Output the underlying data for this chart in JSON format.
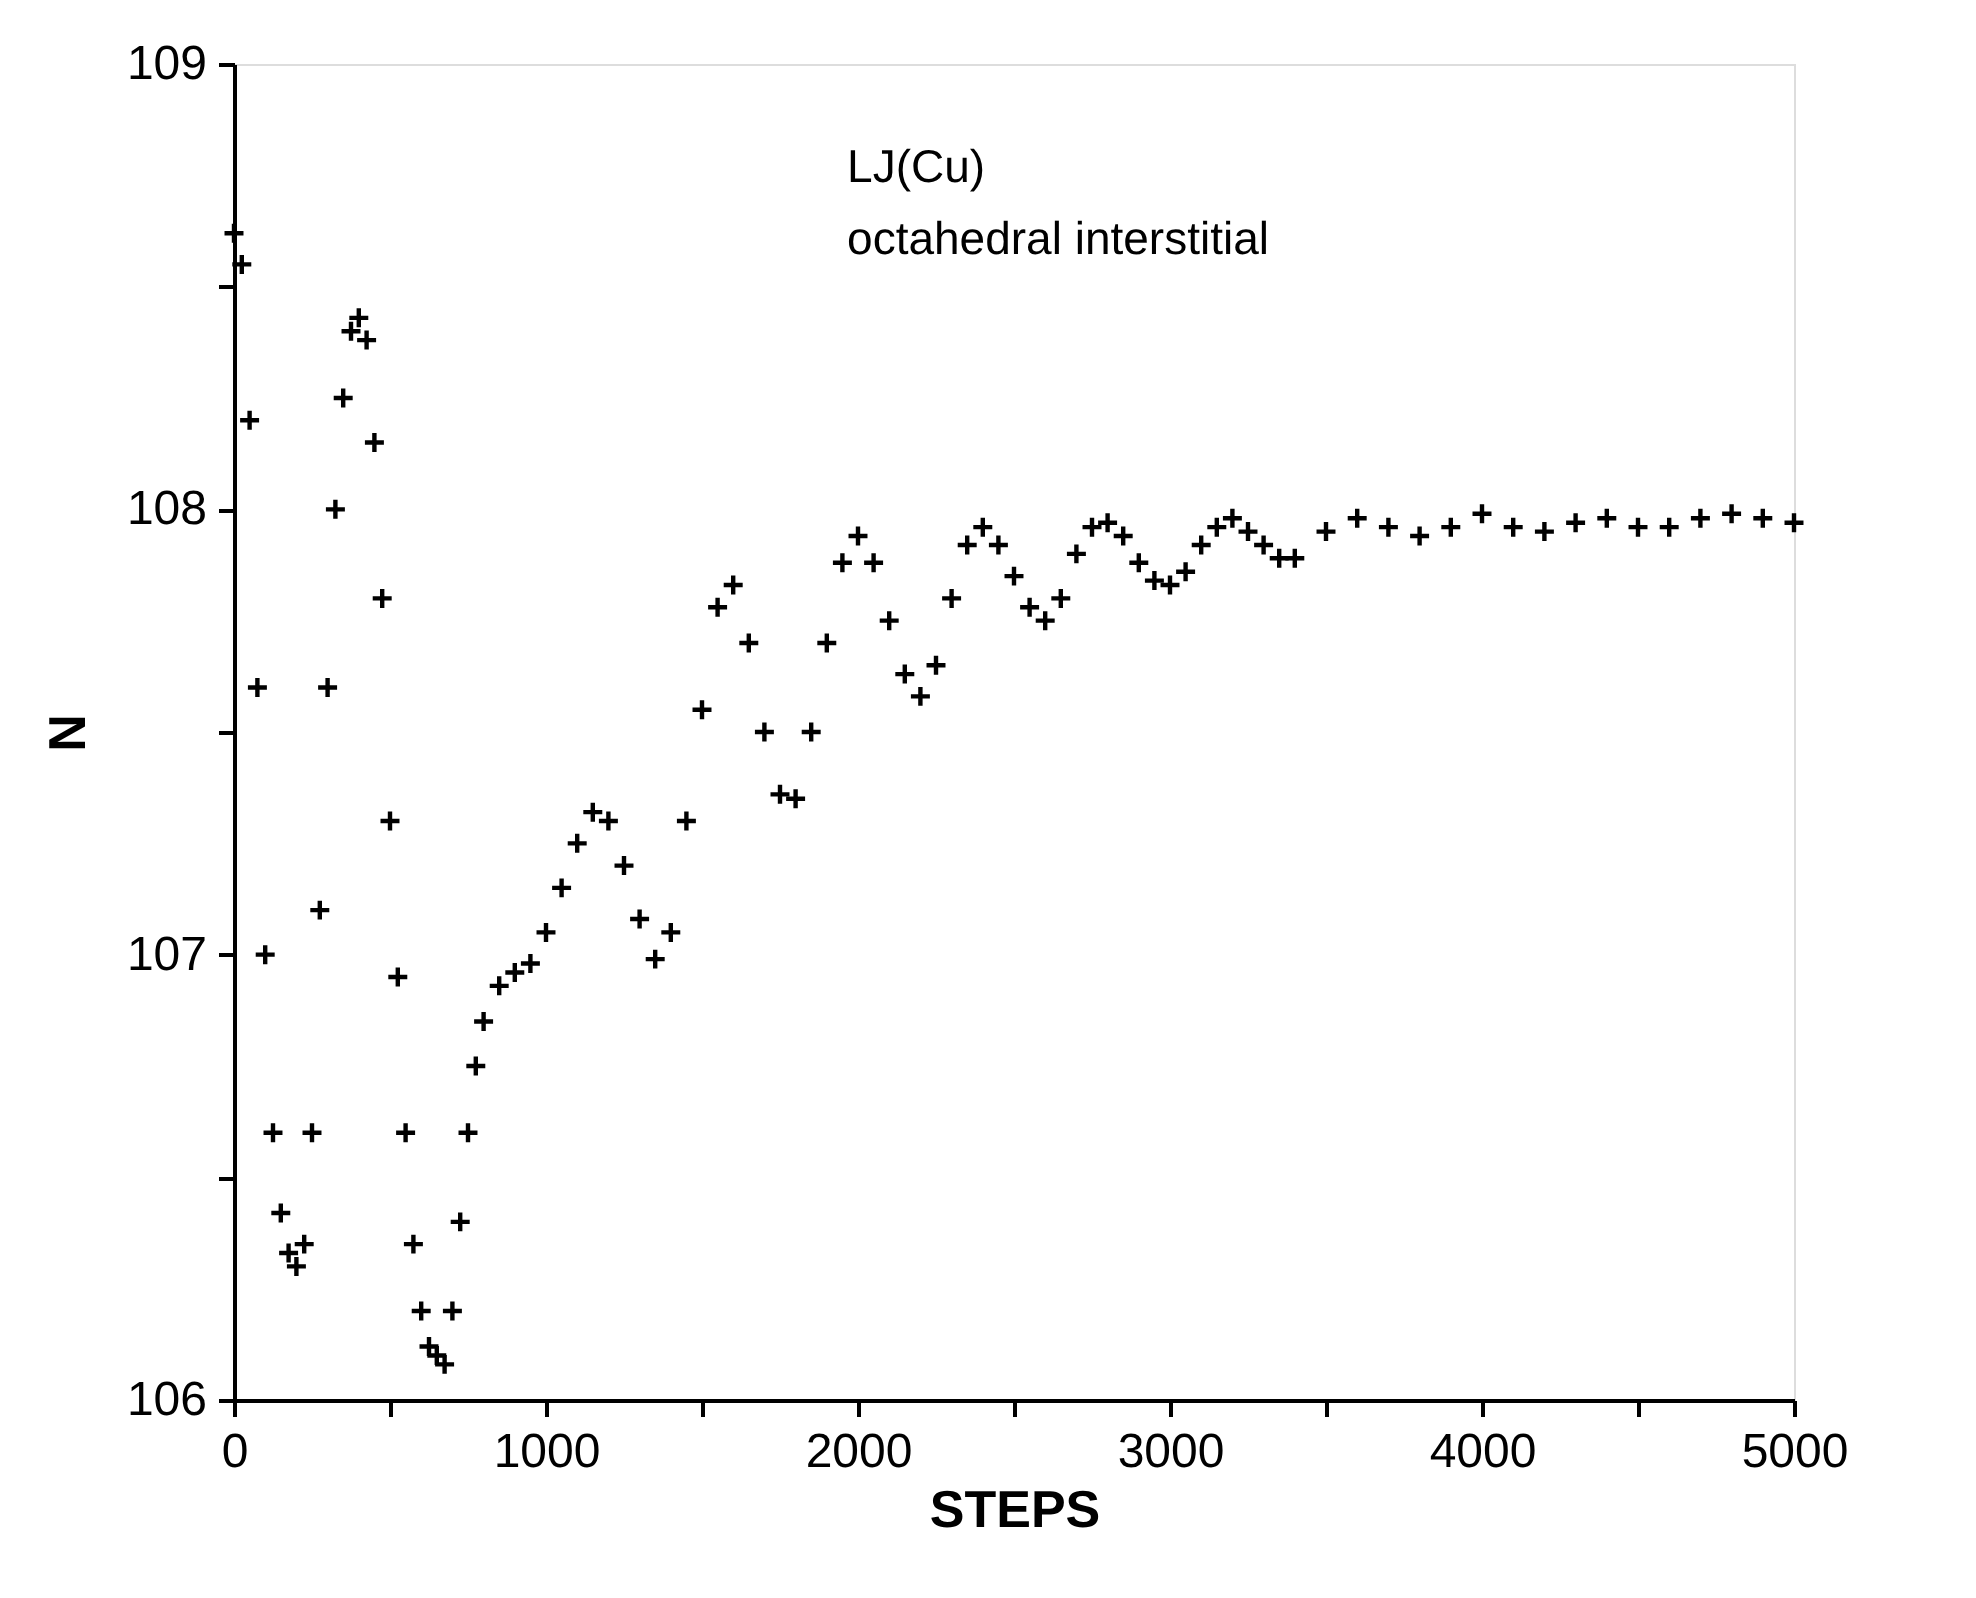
{
  "chart_data": {
    "type": "scatter",
    "xlabel": "STEPS",
    "ylabel": "N",
    "annotations": [
      "LJ(Cu)",
      "octahedral   interstitial"
    ],
    "x": [
      0,
      25,
      50,
      75,
      100,
      125,
      150,
      175,
      200,
      225,
      250,
      275,
      300,
      325,
      350,
      375,
      400,
      425,
      450,
      475,
      500,
      525,
      550,
      575,
      600,
      625,
      650,
      675,
      700,
      725,
      750,
      775,
      800,
      850,
      900,
      950,
      1000,
      1050,
      1100,
      1150,
      1200,
      1250,
      1300,
      1350,
      1400,
      1450,
      1500,
      1550,
      1600,
      1650,
      1700,
      1750,
      1800,
      1850,
      1900,
      1950,
      2000,
      2050,
      2100,
      2150,
      2200,
      2250,
      2300,
      2350,
      2400,
      2450,
      2500,
      2550,
      2600,
      2650,
      2700,
      2750,
      2800,
      2850,
      2900,
      2950,
      3000,
      3050,
      3100,
      3150,
      3200,
      3250,
      3300,
      3350,
      3400,
      3500,
      3600,
      3700,
      3800,
      3900,
      4000,
      4100,
      4200,
      4300,
      4400,
      4500,
      4600,
      4700,
      4800,
      4900,
      5000
    ],
    "values": [
      108.62,
      108.55,
      108.2,
      107.6,
      107.0,
      106.6,
      106.42,
      106.33,
      106.3,
      106.35,
      106.6,
      107.1,
      107.6,
      108.0,
      108.25,
      108.4,
      108.43,
      108.38,
      108.15,
      107.8,
      107.3,
      106.95,
      106.6,
      106.35,
      106.2,
      106.12,
      106.1,
      106.08,
      106.2,
      106.4,
      106.6,
      106.75,
      106.85,
      106.93,
      106.96,
      106.98,
      107.05,
      107.15,
      107.25,
      107.32,
      107.3,
      107.2,
      107.08,
      106.99,
      107.05,
      107.3,
      107.55,
      107.78,
      107.83,
      107.7,
      107.5,
      107.36,
      107.35,
      107.5,
      107.7,
      107.88,
      107.94,
      107.88,
      107.75,
      107.63,
      107.58,
      107.65,
      107.8,
      107.92,
      107.96,
      107.92,
      107.85,
      107.78,
      107.75,
      107.8,
      107.9,
      107.96,
      107.97,
      107.94,
      107.88,
      107.84,
      107.83,
      107.86,
      107.92,
      107.96,
      107.98,
      107.95,
      107.92,
      107.89,
      107.89,
      107.95,
      107.98,
      107.96,
      107.94,
      107.96,
      107.99,
      107.96,
      107.95,
      107.97,
      107.98,
      107.96,
      107.96,
      107.98,
      107.99,
      107.98,
      107.97
    ],
    "color": "#000000",
    "marker": "cross",
    "xlim": [
      0,
      5000
    ],
    "ylim": [
      106,
      109
    ],
    "xticks": [
      0,
      {
        "value": 500,
        "label": null
      },
      1000,
      {
        "value": 1500,
        "label": null
      },
      2000,
      {
        "value": 2500,
        "label": null
      },
      3000,
      {
        "value": 3500,
        "label": null
      },
      4000,
      {
        "value": 4500,
        "label": null
      },
      5000
    ],
    "yticks": [
      106,
      {
        "value": 106.5,
        "label": null
      },
      107,
      {
        "value": 107.5,
        "label": null
      },
      108,
      {
        "value": 108.5,
        "label": null
      },
      109
    ],
    "grid": false
  }
}
